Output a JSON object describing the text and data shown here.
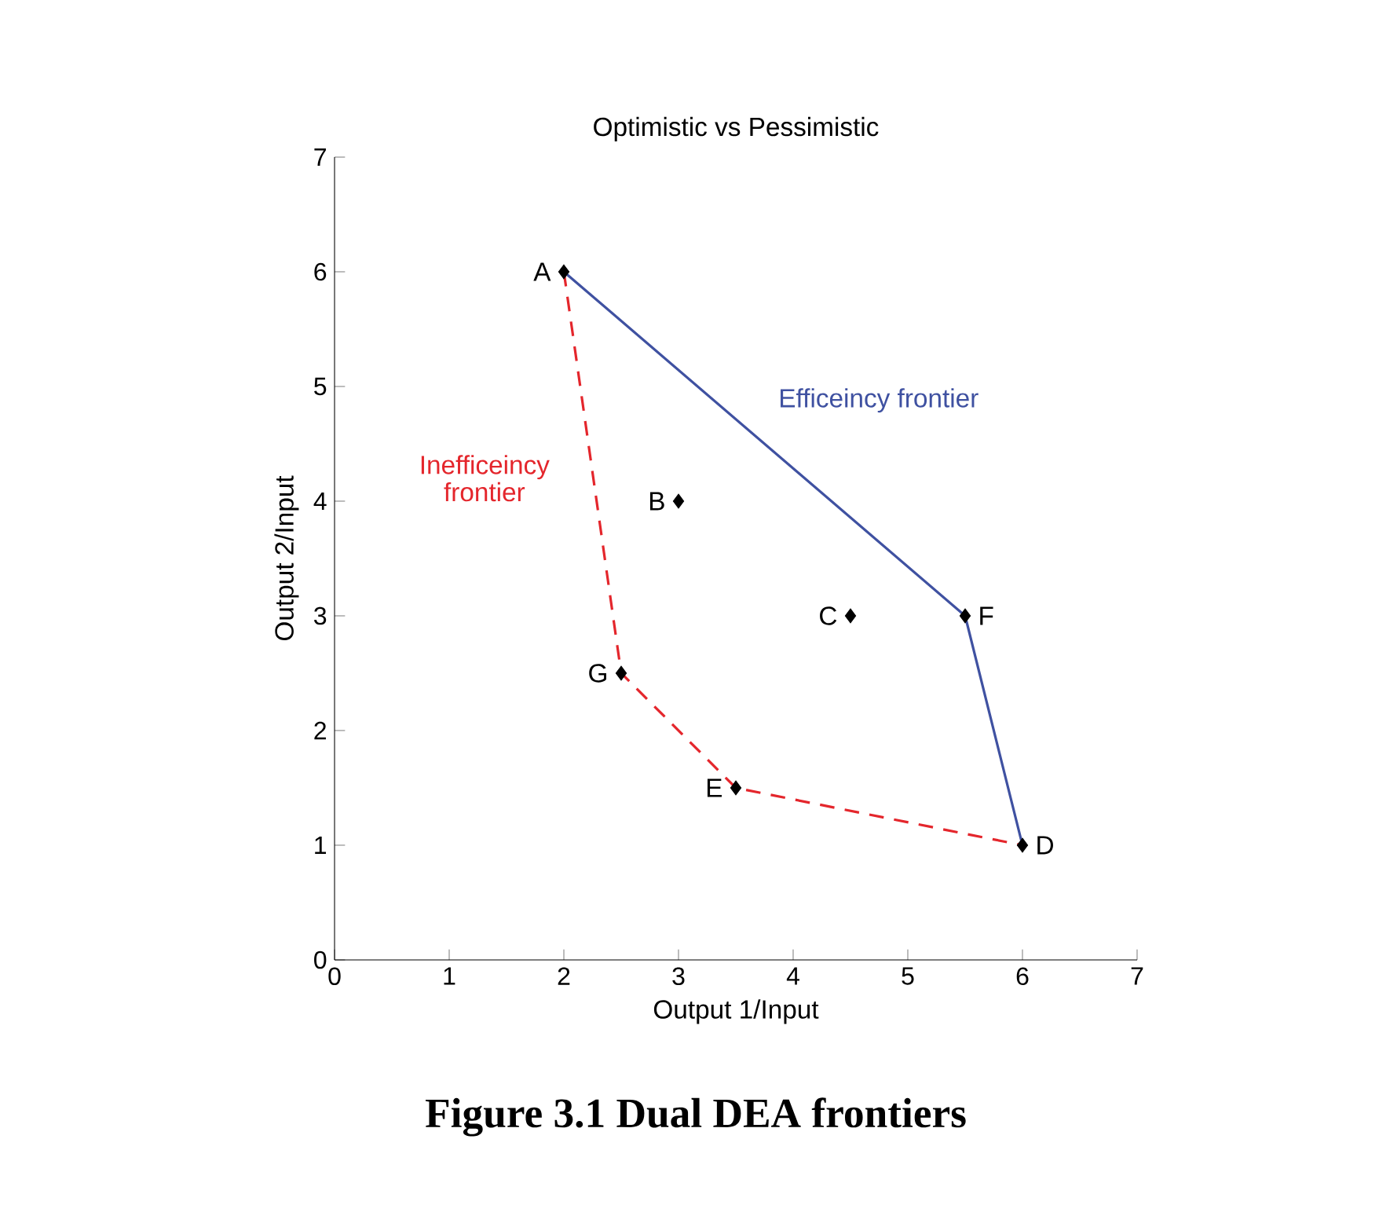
{
  "chart_data": {
    "type": "scatter",
    "title": "Optimistic vs Pessimistic",
    "xlabel": "Output 1/Input",
    "ylabel": "Output 2/Input",
    "xlim": [
      0,
      7
    ],
    "ylim": [
      0,
      7
    ],
    "xticks": [
      0,
      1,
      2,
      3,
      4,
      5,
      6,
      7
    ],
    "yticks": [
      0,
      1,
      2,
      3,
      4,
      5,
      6,
      7
    ],
    "series": [
      {
        "name": "Efficeincy frontier",
        "type": "line",
        "color": "#3f51a1",
        "line_style": "solid",
        "x": [
          2,
          5.5,
          6
        ],
        "values": [
          6,
          3,
          1
        ]
      },
      {
        "name": "Inefficeincy frontier",
        "type": "line",
        "color": "#e4262c",
        "line_style": "dashed",
        "x": [
          2,
          2.5,
          3.5,
          6
        ],
        "values": [
          6,
          2.5,
          1.5,
          1
        ]
      },
      {
        "color": "#000000",
        "marker": "diamond",
        "x": [
          2,
          3,
          4.5,
          6,
          3.5,
          5.5,
          2.5
        ],
        "values": [
          6,
          4,
          3,
          1,
          1.5,
          3,
          2.5
        ]
      }
    ],
    "annotations": [
      {
        "text": "A",
        "x": 2,
        "y": 6
      },
      {
        "text": "B",
        "x": 3,
        "y": 4
      },
      {
        "text": "C",
        "x": 4.5,
        "y": 3
      },
      {
        "text": "D",
        "x": 6,
        "y": 1
      },
      {
        "text": "E",
        "x": 3.5,
        "y": 1.5
      },
      {
        "text": "F",
        "x": 5.5,
        "y": 3
      },
      {
        "text": "G",
        "x": 2.5,
        "y": 2.5
      },
      "Figure 3.1 Dual DEA frontiers"
    ]
  }
}
